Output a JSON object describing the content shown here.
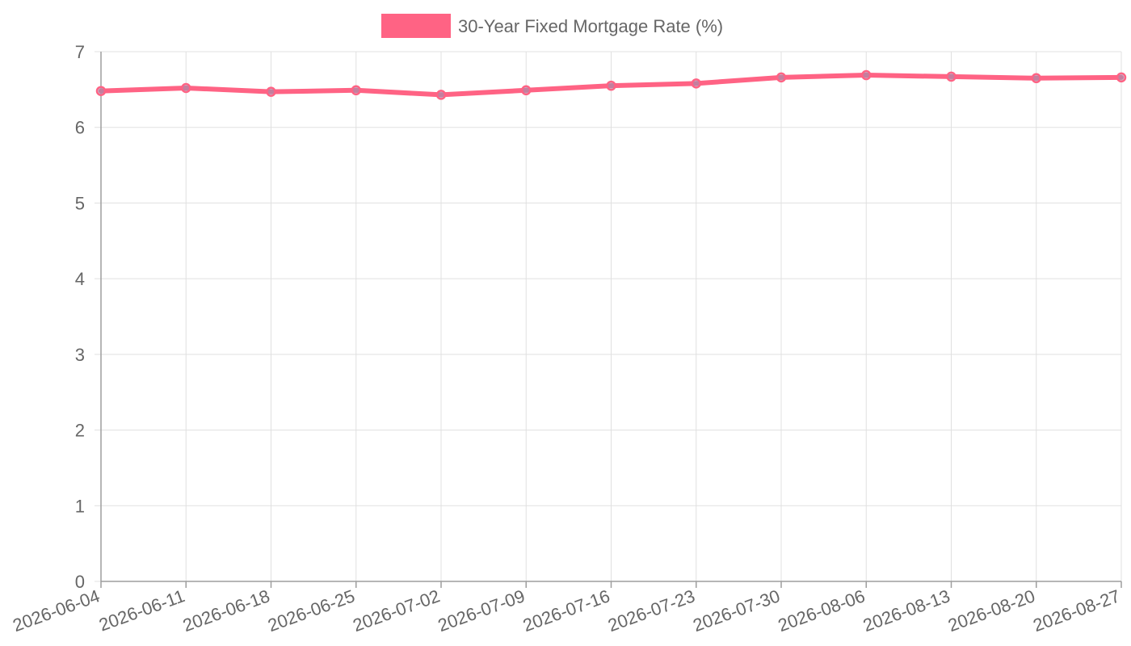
{
  "chart_data": {
    "type": "line",
    "title": "",
    "xlabel": "",
    "ylabel": "",
    "categories": [
      "2026-06-04",
      "2026-06-11",
      "2026-06-18",
      "2026-06-25",
      "2026-07-02",
      "2026-07-09",
      "2026-07-16",
      "2026-07-23",
      "2026-07-30",
      "2026-08-06",
      "2026-08-13",
      "2026-08-20",
      "2026-08-27"
    ],
    "series": [
      {
        "name": "30-Year Fixed Mortgage Rate (%)",
        "color": "#ff6384",
        "values": [
          6.48,
          6.52,
          6.47,
          6.49,
          6.43,
          6.49,
          6.55,
          6.58,
          6.66,
          6.69,
          6.67,
          6.65,
          6.66
        ]
      }
    ],
    "ylim": [
      0,
      7
    ],
    "yticks": [
      0,
      1,
      2,
      3,
      4,
      5,
      6,
      7
    ],
    "grid": true,
    "legend": "top-center"
  }
}
